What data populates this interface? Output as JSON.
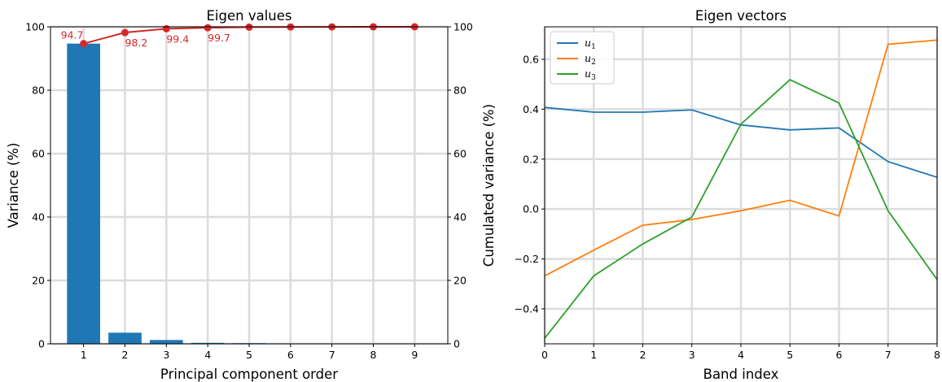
{
  "chart_data": [
    {
      "type": "bar",
      "title": "Eigen values",
      "xlabel": "Principal component order",
      "ylabel": "Variance (%)",
      "y2label": "Cumulated variance (%)",
      "categories": [
        "1",
        "2",
        "3",
        "4",
        "5",
        "6",
        "7",
        "8",
        "9"
      ],
      "xlim": [
        0.2,
        9.8
      ],
      "ylim": [
        0,
        100
      ],
      "y2lim": [
        0,
        100
      ],
      "yticks": [
        0,
        20,
        40,
        60,
        80,
        100
      ],
      "grid": true,
      "series": [
        {
          "kind": "bar",
          "color": "#1f77b4",
          "values": [
            94.7,
            3.5,
            1.2,
            0.3,
            0.2,
            0.05,
            0.03,
            0.02,
            0.01
          ]
        },
        {
          "kind": "line",
          "axis": "right",
          "color": "#d62728",
          "values": [
            94.7,
            98.2,
            99.4,
            99.7,
            99.9,
            99.95,
            99.98,
            99.99,
            100.0
          ],
          "data_labels": [
            "94.7",
            "98.2",
            "99.4",
            "99.7"
          ]
        }
      ]
    },
    {
      "type": "line",
      "title": "Eigen vectors",
      "xlabel": "Band index",
      "ylabel": "",
      "xlim": [
        0,
        8
      ],
      "ylim": [
        -0.54,
        0.73
      ],
      "xticks": [
        0,
        1,
        2,
        3,
        4,
        5,
        6,
        7,
        8
      ],
      "yticks": [
        -0.4,
        -0.2,
        0.0,
        0.2,
        0.4,
        0.6
      ],
      "ytick_labels": [
        "−0.4",
        "−0.2",
        "0.0",
        "0.2",
        "0.4",
        "0.6"
      ],
      "grid": true,
      "legend": "top-left",
      "x": [
        0,
        1,
        2,
        3,
        4,
        5,
        6,
        7,
        8
      ],
      "series": [
        {
          "name": "u",
          "sub": "1",
          "color": "#1f77b4",
          "values": [
            0.407,
            0.388,
            0.388,
            0.397,
            0.337,
            0.317,
            0.325,
            0.19,
            0.127
          ]
        },
        {
          "name": "u",
          "sub": "2",
          "color": "#ff7f0e",
          "values": [
            -0.268,
            -0.165,
            -0.065,
            -0.042,
            -0.007,
            0.035,
            -0.028,
            0.66,
            0.677
          ]
        },
        {
          "name": "u",
          "sub": "3",
          "color": "#2ca02c",
          "values": [
            -0.518,
            -0.268,
            -0.14,
            -0.032,
            0.34,
            0.518,
            0.425,
            -0.007,
            -0.283
          ]
        }
      ]
    }
  ]
}
